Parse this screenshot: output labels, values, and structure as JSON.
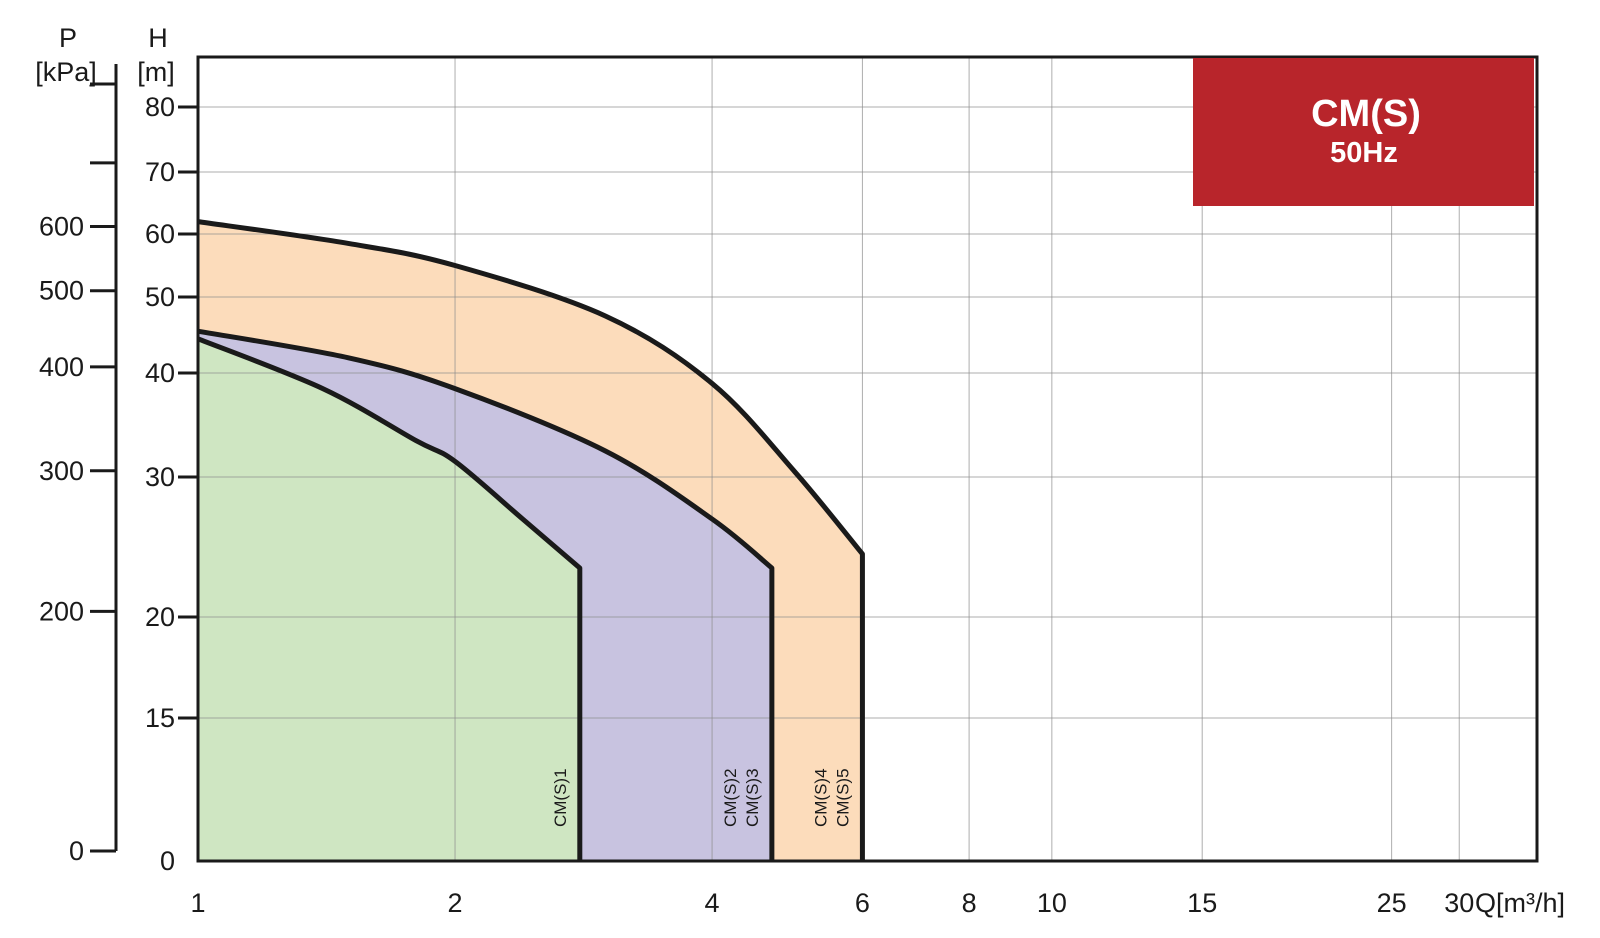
{
  "chart_data": {
    "type": "area",
    "title": "CM(S)",
    "subtitle": "50Hz",
    "badge_color": "#b8252b",
    "xlabel": "Q[m³/h]",
    "ylabel": "H [m]",
    "y2label_parts": [
      "P",
      "[kPa]"
    ],
    "ylabel_parts": [
      "H",
      "[m]"
    ],
    "x_scale": "log",
    "xlim": [
      1,
      37
    ],
    "ylim": [
      0,
      85
    ],
    "grid": true,
    "x_ticks": [
      "1",
      "2",
      "4",
      "6",
      "8",
      "10",
      "15",
      "25",
      "30"
    ],
    "x_tick_values": [
      1,
      2,
      4,
      6,
      8,
      10,
      15,
      25,
      30
    ],
    "y_ticks": [
      "0",
      "15",
      "20",
      "30",
      "40",
      "50",
      "60",
      "70",
      "80"
    ],
    "y_tick_values": [
      0,
      15,
      20,
      30,
      40,
      50,
      60,
      70,
      80
    ],
    "p_ticks": [
      "0",
      "200",
      "300",
      "400",
      "500",
      "600"
    ],
    "p_tick_h": [
      0,
      20.4,
      30.6,
      40.8,
      51,
      61.2
    ],
    "p_extra_tick_h": [
      71.4
    ],
    "series": [
      {
        "name": "CM(S)4 CM(S)5",
        "label_lines": [
          "CM(S)4",
          "CM(S)5"
        ],
        "color": "#fcdcbb",
        "top": [
          [
            1,
            62
          ],
          [
            1.5,
            58.5
          ],
          [
            2,
            55
          ],
          [
            3,
            47.5
          ],
          [
            4,
            39
          ],
          [
            5,
            30.5
          ],
          [
            6,
            24.5
          ]
        ],
        "q_max": 6
      },
      {
        "name": "CM(S)2 CM(S)3",
        "label_lines": [
          "CM(S)2",
          "CM(S)3"
        ],
        "color": "#c8c3e0",
        "top": [
          [
            1,
            45.5
          ],
          [
            1.5,
            42
          ],
          [
            2,
            38.5
          ],
          [
            3,
            32.5
          ],
          [
            4,
            27
          ],
          [
            4.7,
            23.5
          ]
        ],
        "q_max": 4.7
      },
      {
        "name": "CM(S)1",
        "label_lines": [
          "CM(S)1"
        ],
        "color": "#cfe6c2",
        "top": [
          [
            1,
            44.5
          ],
          [
            1.4,
            38.5
          ],
          [
            1.8,
            33.5
          ],
          [
            2,
            31.5
          ],
          [
            2.4,
            27
          ],
          [
            2.8,
            23.5
          ]
        ],
        "q_max": 2.8
      }
    ]
  }
}
